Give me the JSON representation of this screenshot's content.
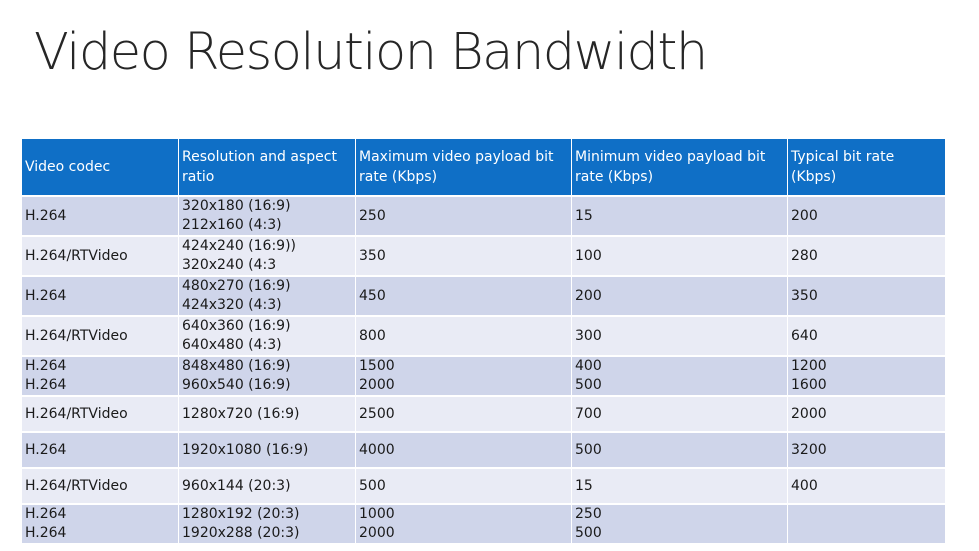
{
  "title": "Video Resolution Bandwidth",
  "headers": [
    "Video codec",
    "Resolution and aspect ratio",
    "Maximum video payload bit rate (Kbps)",
    "Minimum video payload bit rate (Kbps)",
    "Typical bit rate (Kbps)"
  ],
  "rows": [
    {
      "codec": [
        "H.264"
      ],
      "resolution": [
        "320x180 (16:9)",
        "212x160 (4:3)"
      ],
      "max": [
        "250"
      ],
      "min": [
        "15"
      ],
      "typical": [
        "200"
      ]
    },
    {
      "codec": [
        "H.264/RTVideo"
      ],
      "resolution": [
        "424x240 (16:9))",
        "320x240 (4:3"
      ],
      "max": [
        "350"
      ],
      "min": [
        "100"
      ],
      "typical": [
        "280"
      ]
    },
    {
      "codec": [
        "H.264"
      ],
      "resolution": [
        "480x270 (16:9)",
        "424x320 (4:3)"
      ],
      "max": [
        "450"
      ],
      "min": [
        "200"
      ],
      "typical": [
        "350"
      ]
    },
    {
      "codec": [
        "H.264/RTVideo"
      ],
      "resolution": [
        "640x360 (16:9)",
        "640x480 (4:3)"
      ],
      "max": [
        "800"
      ],
      "min": [
        "300"
      ],
      "typical": [
        "640"
      ]
    },
    {
      "codec": [
        "H.264",
        "H.264"
      ],
      "resolution": [
        "848x480 (16:9)",
        "960x540 (16:9)"
      ],
      "max": [
        "1500",
        "2000"
      ],
      "min": [
        "400",
        "500"
      ],
      "typical": [
        "1200",
        "1600"
      ]
    },
    {
      "codec": [
        "H.264/RTVideo"
      ],
      "resolution": [
        "1280x720 (16:9)"
      ],
      "max": [
        "2500"
      ],
      "min": [
        "700"
      ],
      "typical": [
        "2000"
      ]
    },
    {
      "codec": [
        "H.264"
      ],
      "resolution": [
        "1920x1080 (16:9)"
      ],
      "max": [
        "4000"
      ],
      "min": [
        "500"
      ],
      "typical": [
        "3200"
      ]
    },
    {
      "codec": [
        "H.264/RTVideo"
      ],
      "resolution": [
        "960x144 (20:3)"
      ],
      "max": [
        "500"
      ],
      "min": [
        "15"
      ],
      "typical": [
        "400"
      ]
    },
    {
      "codec": [
        "H.264",
        "H.264"
      ],
      "resolution": [
        "1280x192 (20:3)",
        "1920x288 (20:3)"
      ],
      "max": [
        "1000",
        "2000"
      ],
      "min": [
        "250",
        "500"
      ],
      "typical": []
    }
  ],
  "colors": {
    "header": "#0f6fc6",
    "row_odd": "#cfd5ea",
    "row_even": "#e9ebf5"
  }
}
